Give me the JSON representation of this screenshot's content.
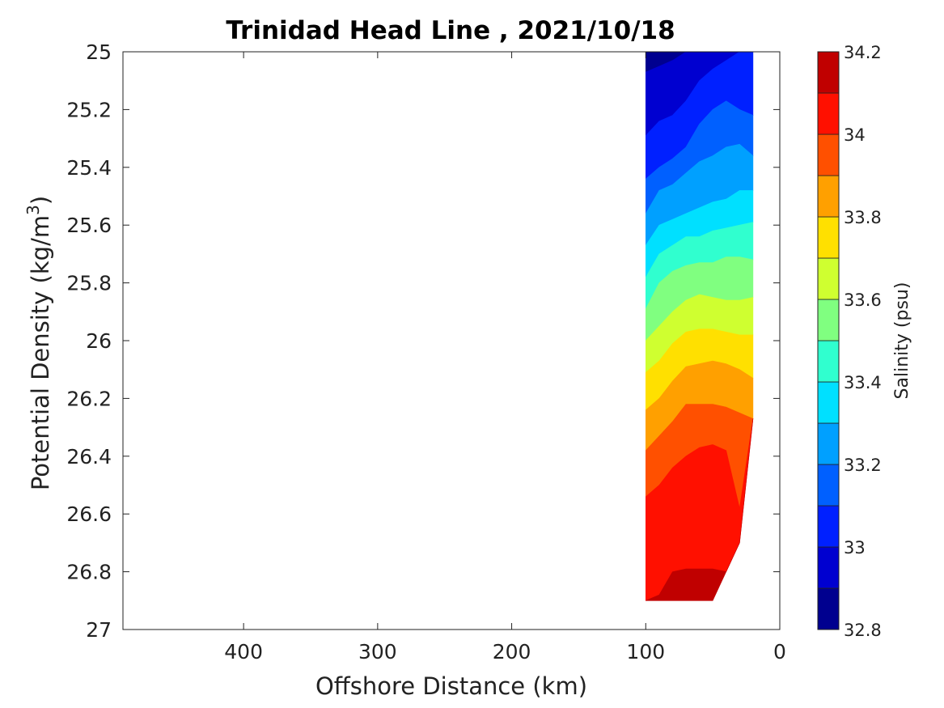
{
  "chart_data": {
    "type": "filled-contour",
    "title": "Trinidad Head Line , 2021/10/18",
    "xlabel": "Offshore Distance (km)",
    "ylabel_main": "Potential Density (kg/m",
    "ylabel_sup": "3",
    "ylabel_close": ")",
    "colorbar_label": "Salinity (psu)",
    "xlim": [
      490,
      0
    ],
    "x_reversed": true,
    "ylim": [
      25,
      27
    ],
    "y_reversed": true,
    "x_ticks": [
      400,
      300,
      200,
      100,
      0
    ],
    "x_tick_labels": [
      "400",
      "300",
      "200",
      "100",
      "0"
    ],
    "y_ticks": [
      25,
      25.2,
      25.4,
      25.6,
      25.8,
      26,
      26.2,
      26.4,
      26.6,
      26.8,
      27
    ],
    "y_tick_labels": [
      "25",
      "25.2",
      "25.4",
      "25.6",
      "25.8",
      "26",
      "26.2",
      "26.4",
      "26.6",
      "26.8",
      "27"
    ],
    "colorbar_range": [
      32.8,
      34.2
    ],
    "colorbar_ticks": [
      34.2,
      34,
      33.8,
      33.6,
      33.4,
      33.2,
      33,
      32.8
    ],
    "colorbar_tick_labels": [
      "34.2",
      "34",
      "33.8",
      "33.6",
      "33.4",
      "33.2",
      "33",
      "32.8"
    ],
    "levels": [
      32.8,
      32.9,
      33.0,
      33.1,
      33.2,
      33.3,
      33.4,
      33.5,
      33.6,
      33.7,
      33.8,
      33.9,
      34.0,
      34.1,
      34.2
    ],
    "colors": [
      "#00008f",
      "#0000d0",
      "#0020ff",
      "#0060ff",
      "#00a0ff",
      "#00e0ff",
      "#30ffcf",
      "#80ff80",
      "#cfff30",
      "#ffe000",
      "#ffa000",
      "#ff5000",
      "#ff1000",
      "#c00000"
    ],
    "section_x_range_km": [
      100,
      20
    ],
    "station_x_km": [
      100,
      90,
      80,
      70,
      60,
      50,
      40,
      30,
      20
    ],
    "salinity_isoline_depths_sigma": [
      {
        "level": 32.9,
        "sigma": [
          25.07,
          25.05,
          25.03,
          25.0,
          25.0,
          25.0,
          25.0,
          25.0,
          25.0
        ]
      },
      {
        "level": 33.0,
        "sigma": [
          25.29,
          25.24,
          25.22,
          25.17,
          25.1,
          25.06,
          25.03,
          25.0,
          25.0
        ]
      },
      {
        "level": 33.1,
        "sigma": [
          25.44,
          25.4,
          25.37,
          25.33,
          25.25,
          25.2,
          25.17,
          25.2,
          25.22
        ]
      },
      {
        "level": 33.2,
        "sigma": [
          25.56,
          25.48,
          25.46,
          25.42,
          25.38,
          25.36,
          25.33,
          25.32,
          25.36
        ]
      },
      {
        "level": 33.3,
        "sigma": [
          25.67,
          25.6,
          25.58,
          25.56,
          25.54,
          25.52,
          25.51,
          25.48,
          25.48
        ]
      },
      {
        "level": 33.4,
        "sigma": [
          25.78,
          25.7,
          25.67,
          25.64,
          25.64,
          25.62,
          25.61,
          25.6,
          25.59
        ]
      },
      {
        "level": 33.5,
        "sigma": [
          25.89,
          25.8,
          25.76,
          25.74,
          25.73,
          25.73,
          25.71,
          25.71,
          25.72
        ]
      },
      {
        "level": 33.6,
        "sigma": [
          26.0,
          25.95,
          25.9,
          25.86,
          25.84,
          25.85,
          25.86,
          25.86,
          25.85
        ]
      },
      {
        "level": 33.7,
        "sigma": [
          26.11,
          26.07,
          26.01,
          25.97,
          25.96,
          25.96,
          25.97,
          25.98,
          25.98
        ]
      },
      {
        "level": 33.8,
        "sigma": [
          26.24,
          26.2,
          26.14,
          26.09,
          26.08,
          26.07,
          26.08,
          26.1,
          26.13
        ]
      },
      {
        "level": 33.9,
        "sigma": [
          26.38,
          26.33,
          26.28,
          26.22,
          26.22,
          26.22,
          26.23,
          26.25,
          26.27
        ]
      },
      {
        "level": 34.0,
        "sigma": [
          26.54,
          26.5,
          26.44,
          26.4,
          26.37,
          26.36,
          26.38,
          26.58,
          26.62
        ]
      },
      {
        "level": 34.1,
        "sigma": [
          26.9,
          26.88,
          26.8,
          26.79,
          26.79,
          26.79,
          26.8,
          26.9,
          26.9
        ]
      }
    ],
    "bottom_boundary_sigma": [
      26.9,
      26.9,
      26.9,
      26.9,
      26.9,
      26.9,
      26.8,
      26.7,
      26.27
    ],
    "grid": false,
    "colorbar_position": "right"
  }
}
